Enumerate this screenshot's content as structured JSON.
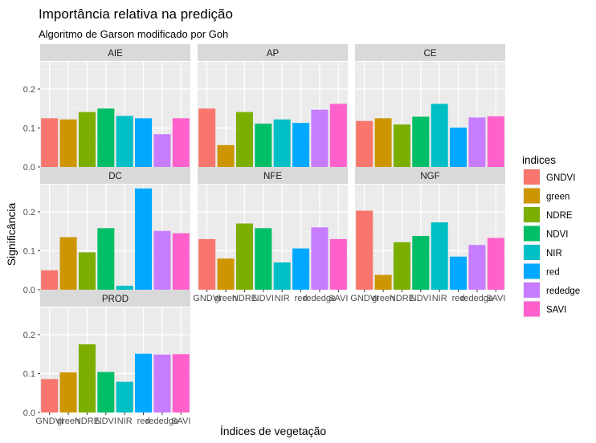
{
  "chart_data": {
    "type": "bar",
    "title": "Importância relativa na predição",
    "subtitle": "Algoritmo de Garson modificado por Goh",
    "xlabel": "Índices de vegetação",
    "ylabel": "Significância",
    "ylim": [
      0,
      0.27
    ],
    "yticks": [
      0.0,
      0.1,
      0.2
    ],
    "ytick_labels": [
      "0.0",
      "0.1",
      "0.2"
    ],
    "grid": true,
    "legend_title": "indices",
    "legend_position": "right",
    "categories": [
      "GNDVI",
      "green",
      "NDRE",
      "NDVI",
      "NIR",
      "red",
      "rededge",
      "SAVI"
    ],
    "colors": {
      "GNDVI": "#F8766D",
      "green": "#CD9600",
      "NDRE": "#7CAE00",
      "NDVI": "#00BE67",
      "NIR": "#00BFC4",
      "red": "#00A9FF",
      "rededge": "#C77CFF",
      "SAVI": "#FF61CC"
    },
    "panels": [
      {
        "label": "AIE",
        "values": [
          0.125,
          0.122,
          0.141,
          0.15,
          0.131,
          0.125,
          0.084,
          0.125
        ]
      },
      {
        "label": "AP",
        "values": [
          0.15,
          0.056,
          0.141,
          0.111,
          0.122,
          0.113,
          0.147,
          0.162
        ]
      },
      {
        "label": "CE",
        "values": [
          0.118,
          0.125,
          0.109,
          0.129,
          0.162,
          0.101,
          0.127,
          0.13
        ]
      },
      {
        "label": "DC",
        "values": [
          0.05,
          0.135,
          0.096,
          0.158,
          0.01,
          0.26,
          0.151,
          0.145
        ]
      },
      {
        "label": "NFE",
        "values": [
          0.13,
          0.08,
          0.17,
          0.158,
          0.07,
          0.106,
          0.16,
          0.13
        ]
      },
      {
        "label": "NGF",
        "values": [
          0.203,
          0.038,
          0.122,
          0.138,
          0.173,
          0.085,
          0.115,
          0.133
        ]
      },
      {
        "label": "PROD",
        "values": [
          0.086,
          0.103,
          0.175,
          0.104,
          0.079,
          0.151,
          0.149,
          0.15
        ]
      }
    ]
  }
}
